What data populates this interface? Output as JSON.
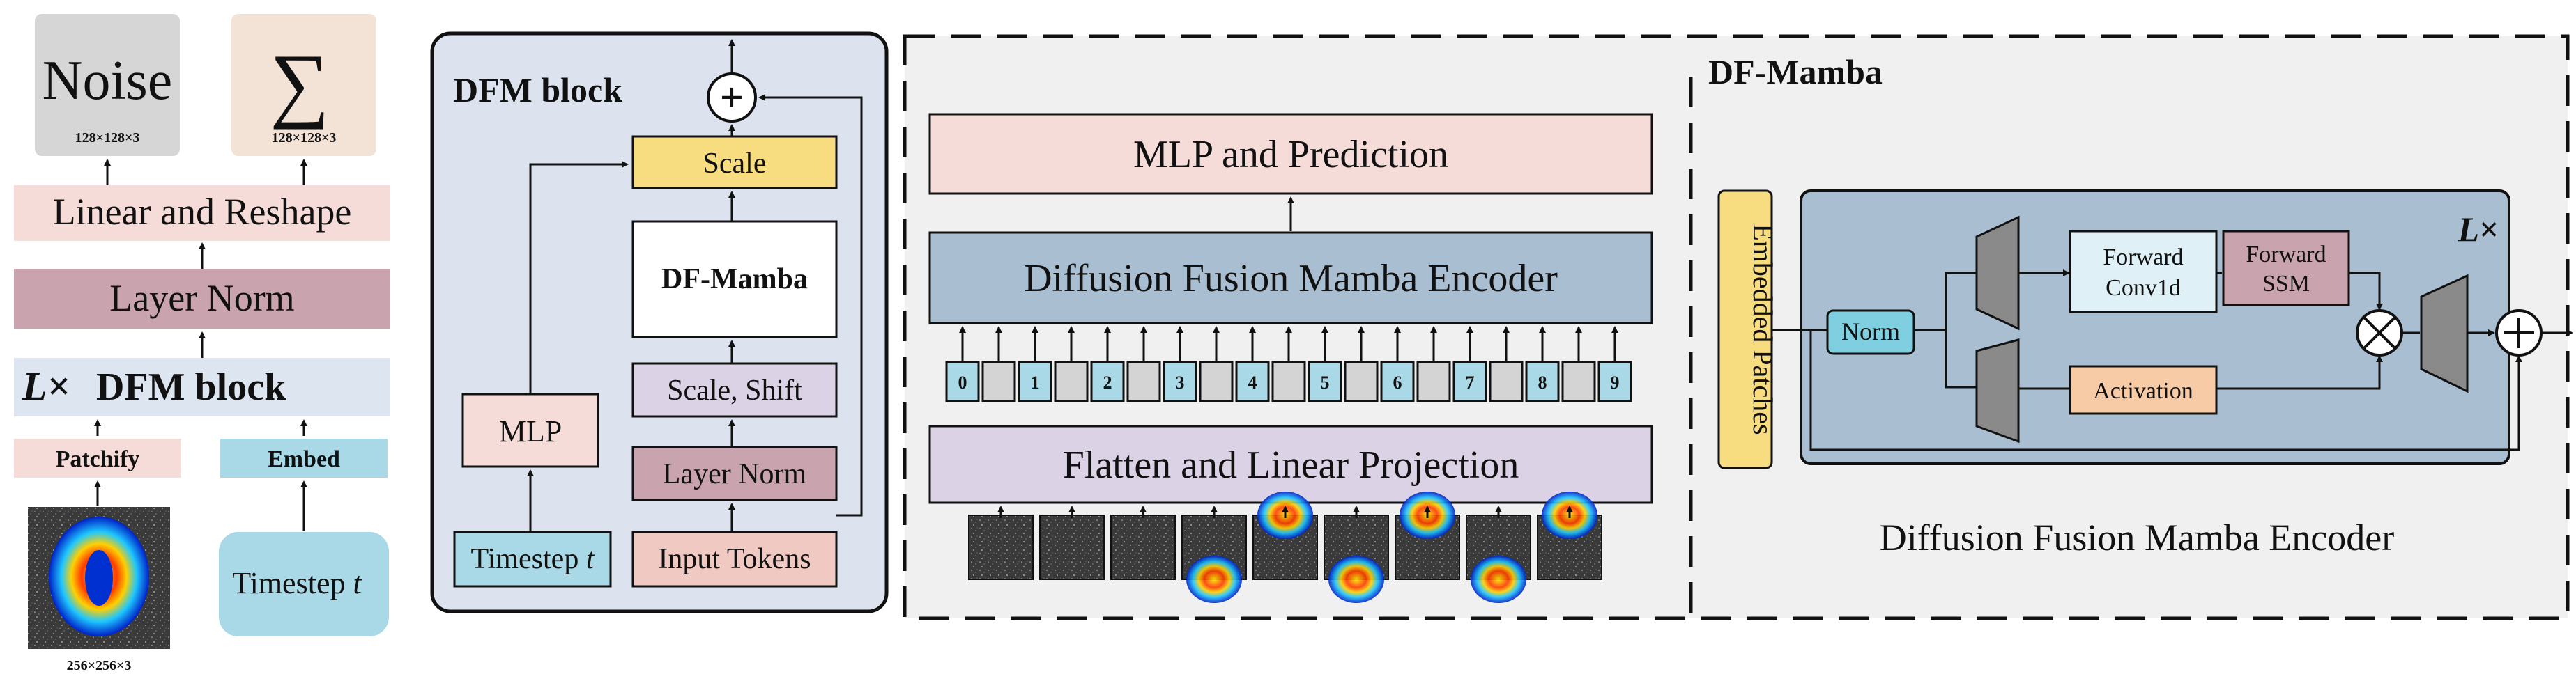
{
  "left": {
    "noise_label": "Noise",
    "noise_dims": "128×128×3",
    "sum_symbol": "∑",
    "sum_dims": "128×128×3",
    "linear_reshape": "Linear and Reshape",
    "layer_norm": "Layer Norm",
    "dfm_block_prefix": "L×",
    "dfm_block_label": "DFM block",
    "patchify": "Patchify",
    "embed": "Embed",
    "timestep": "Timestep",
    "timestep_var": "t",
    "input_dims": "256×256×3"
  },
  "dfm_block": {
    "title": "DFM block",
    "scale": "Scale",
    "df_mamba": "DF-Mamba",
    "scale_shift": "Scale, Shift",
    "layer_norm": "Layer Norm",
    "input_tokens": "Input Tokens",
    "mlp": "MLP",
    "timestep": "Timestep",
    "timestep_var": "t",
    "plus_symbol": "+"
  },
  "df_mamba": {
    "title": "DF-Mamba",
    "mlp_prediction": "MLP and Prediction",
    "encoder": "Diffusion Fusion Mamba Encoder",
    "flatten": "Flatten and Linear Projection",
    "tokens": [
      "0",
      "1",
      "2",
      "3",
      "4",
      "5",
      "6",
      "7",
      "8",
      "9"
    ]
  },
  "encoder_detail": {
    "embedded_patches": "Embedded Patches",
    "norm": "Norm",
    "forward_conv_line1": "Forward",
    "forward_conv_line2": "Conv1d",
    "forward_ssm_line1": "Forward",
    "forward_ssm_line2": "SSM",
    "activation": "Activation",
    "repeat_prefix": "L",
    "repeat_suffix": "×",
    "caption": "Diffusion Fusion Mamba Encoder",
    "multiply_symbol": "⊗",
    "plus_symbol": "+"
  },
  "colors": {
    "pink": "#f6dcd8",
    "mauve": "#c9a3ae",
    "lightblue": "#dde5f0",
    "cyan": "#a9d8e6",
    "yellow": "#f8dc80",
    "lavender": "#dcd2e6",
    "slate": "#a9bfd1",
    "panel_blue": "#dde3ee",
    "panel_gray": "#f0f0f0",
    "orange": "#f6cba6",
    "dark_gray": "#8a8a8a"
  }
}
